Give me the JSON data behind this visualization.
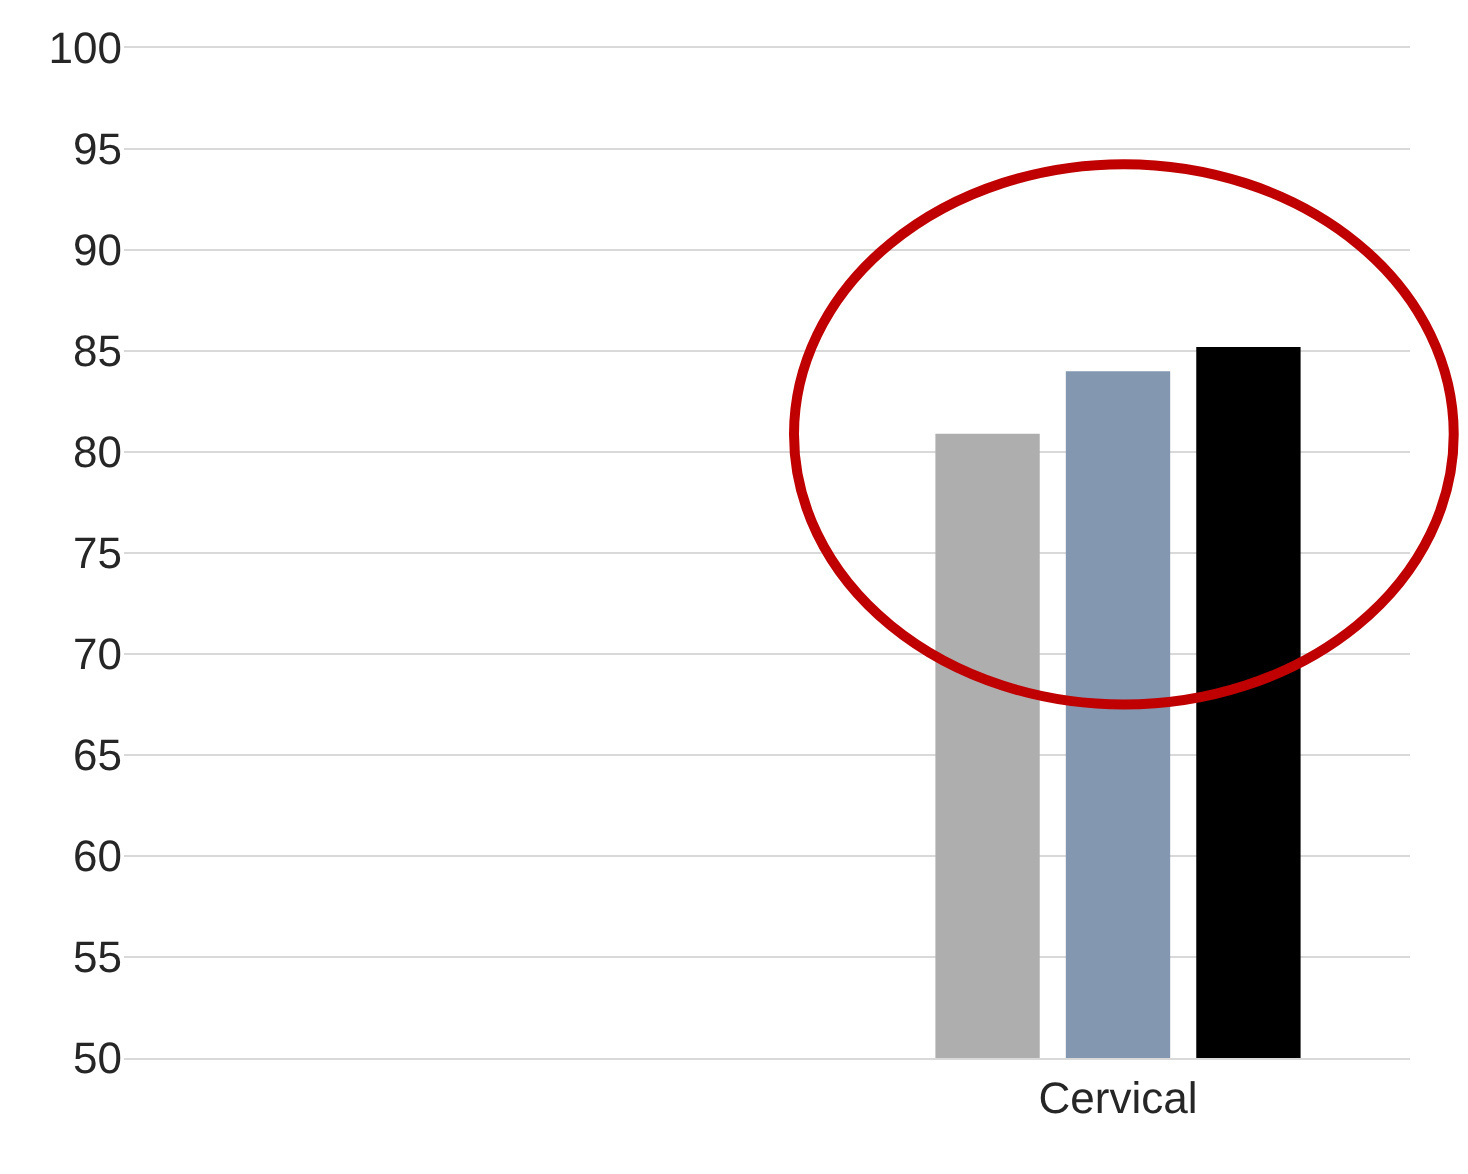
{
  "chart_data": {
    "type": "bar",
    "categories": [
      "Cervical"
    ],
    "series": [
      {
        "color": "#aeaeae",
        "values": [
          80.9
        ]
      },
      {
        "color": "#8497b0",
        "values": [
          84.0
        ]
      },
      {
        "color": "#000000",
        "values": [
          85.2
        ]
      }
    ],
    "ylim": [
      50,
      100
    ],
    "yticks": [
      50,
      55,
      60,
      65,
      70,
      75,
      80,
      85,
      90,
      95,
      100
    ],
    "grid": "y"
  }
}
